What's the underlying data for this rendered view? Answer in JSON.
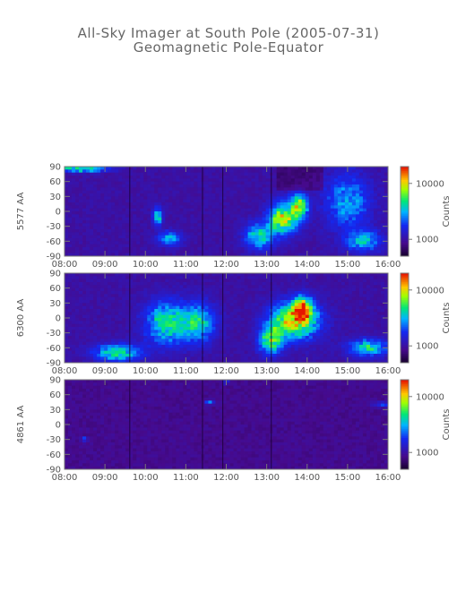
{
  "title": "All-Sky Imager at South Pole (2005-07-31)",
  "subtitle": "Geomagnetic Pole-Equator",
  "chart_data": [
    {
      "type": "heatmap",
      "ylabel": "5577 AA",
      "x_ticks": [
        "08:00",
        "09:00",
        "10:00",
        "11:00",
        "12:00",
        "13:00",
        "14:00",
        "15:00",
        "16:00"
      ],
      "y_ticks": [
        "90",
        "60",
        "30",
        "0",
        "-30",
        "-60",
        "-90"
      ],
      "ylim": [
        -90,
        90
      ],
      "xlim": [
        "08:00",
        "16:00"
      ],
      "colorbar": {
        "label": "Counts",
        "ticks": [
          "10000",
          "1000"
        ],
        "scale": "log",
        "range": [
          500,
          20000
        ]
      },
      "features": [
        {
          "x": 8.4,
          "y": 85,
          "intensity": 0.5,
          "sx": 0.45,
          "sy": 4
        },
        {
          "x": 10.3,
          "y": -10,
          "intensity": 0.45,
          "sx": 0.08,
          "sy": 12
        },
        {
          "x": 10.6,
          "y": -55,
          "intensity": 0.35,
          "sx": 0.2,
          "sy": 10
        },
        {
          "x": 13.4,
          "y": -15,
          "intensity": 0.6,
          "sx": 0.25,
          "sy": 22
        },
        {
          "x": 13.8,
          "y": 10,
          "intensity": 0.55,
          "sx": 0.15,
          "sy": 18
        },
        {
          "x": 12.8,
          "y": -50,
          "intensity": 0.4,
          "sx": 0.25,
          "sy": 18
        },
        {
          "x": 15.4,
          "y": -60,
          "intensity": 0.35,
          "sx": 0.3,
          "sy": 15
        },
        {
          "x": 15.0,
          "y": 20,
          "intensity": 0.3,
          "sx": 0.4,
          "sy": 40
        }
      ]
    },
    {
      "type": "heatmap",
      "ylabel": "6300 AA",
      "x_ticks": [
        "08:00",
        "09:00",
        "10:00",
        "11:00",
        "12:00",
        "13:00",
        "14:00",
        "15:00",
        "16:00"
      ],
      "y_ticks": [
        "90",
        "60",
        "30",
        "0",
        "-30",
        "-60",
        "-90"
      ],
      "ylim": [
        -90,
        90
      ],
      "xlim": [
        "08:00",
        "16:00"
      ],
      "colorbar": {
        "label": "Counts",
        "ticks": [
          "10000",
          "1000"
        ],
        "scale": "log",
        "range": [
          500,
          20000
        ]
      },
      "features": [
        {
          "x": 9.3,
          "y": -70,
          "intensity": 0.45,
          "sx": 0.4,
          "sy": 12
        },
        {
          "x": 10.5,
          "y": -10,
          "intensity": 0.45,
          "sx": 0.35,
          "sy": 30
        },
        {
          "x": 11.3,
          "y": -10,
          "intensity": 0.4,
          "sx": 0.3,
          "sy": 28
        },
        {
          "x": 13.7,
          "y": -5,
          "intensity": 0.7,
          "sx": 0.4,
          "sy": 25
        },
        {
          "x": 13.9,
          "y": 20,
          "intensity": 0.6,
          "sx": 0.15,
          "sy": 15
        },
        {
          "x": 13.1,
          "y": -45,
          "intensity": 0.5,
          "sx": 0.2,
          "sy": 20
        },
        {
          "x": 15.5,
          "y": -60,
          "intensity": 0.4,
          "sx": 0.35,
          "sy": 12
        }
      ]
    },
    {
      "type": "heatmap",
      "ylabel": "4861 AA",
      "x_ticks": [
        "08:00",
        "09:00",
        "10:00",
        "11:00",
        "12:00",
        "13:00",
        "14:00",
        "15:00",
        "16:00"
      ],
      "y_ticks": [
        "90",
        "60",
        "30",
        "0",
        "-30",
        "-60",
        "-90"
      ],
      "ylim": [
        -90,
        90
      ],
      "xlim": [
        "08:00",
        "16:00"
      ],
      "colorbar": {
        "label": "Counts",
        "ticks": [
          "10000",
          "1000"
        ],
        "scale": "log",
        "range": [
          500,
          20000
        ]
      },
      "features": [
        {
          "x": 8.5,
          "y": -30,
          "intensity": 0.3,
          "sx": 0.05,
          "sy": 3
        },
        {
          "x": 11.6,
          "y": 45,
          "intensity": 0.3,
          "sx": 0.08,
          "sy": 3
        },
        {
          "x": 12.0,
          "y": 85,
          "intensity": 0.25,
          "sx": 0.05,
          "sy": 3
        },
        {
          "x": 15.9,
          "y": 40,
          "intensity": 0.2,
          "sx": 0.2,
          "sy": 4
        }
      ]
    }
  ]
}
